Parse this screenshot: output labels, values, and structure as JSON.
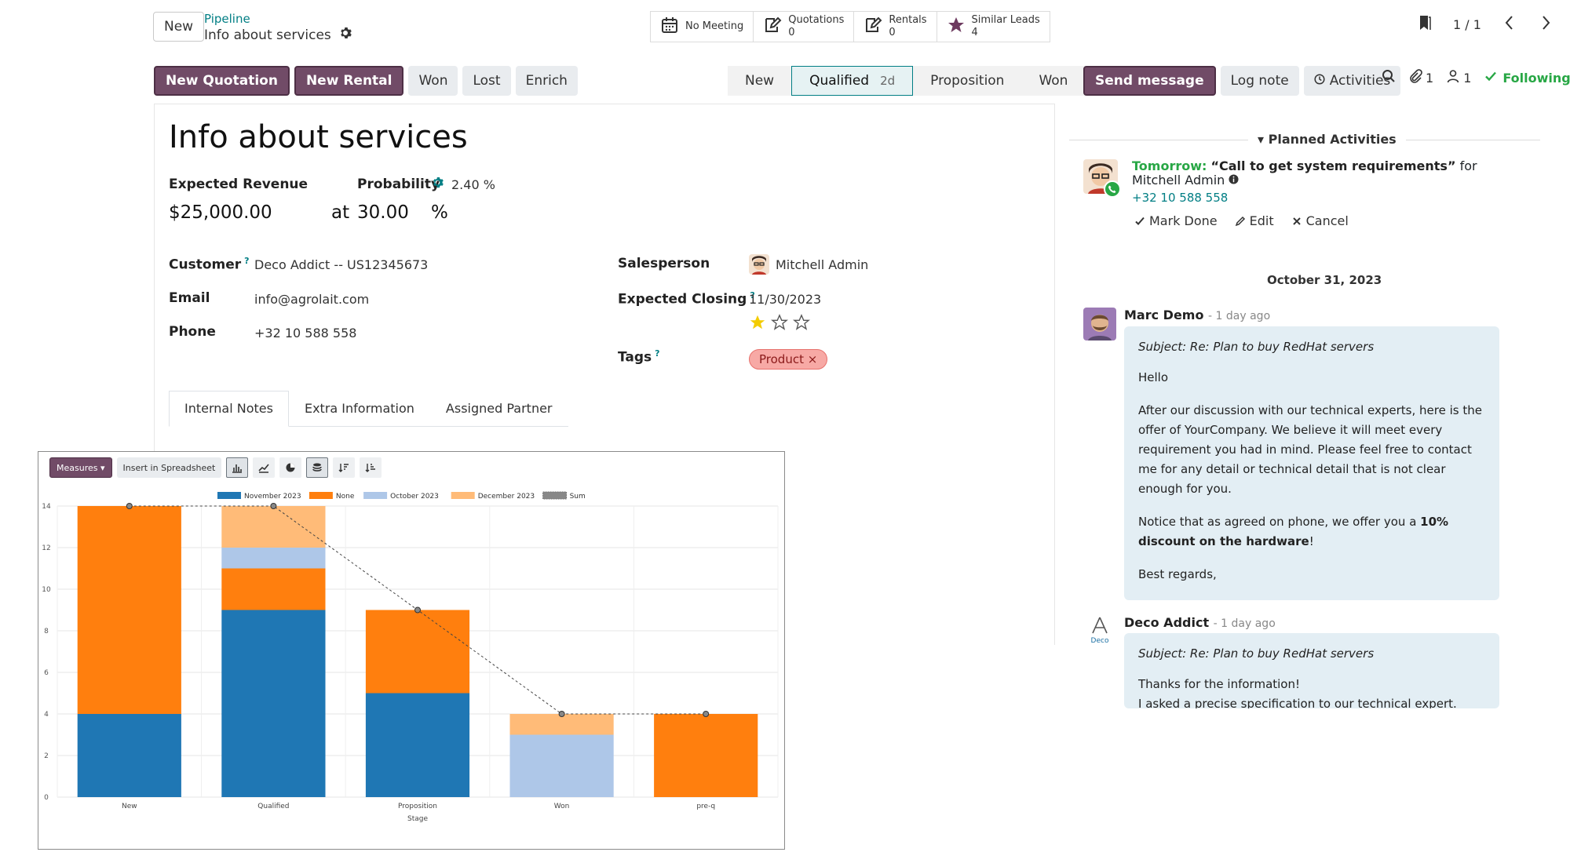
{
  "control_panel": {
    "new_button": "New",
    "breadcrumb_parent": "Pipeline",
    "breadcrumb_current": "Info about services",
    "smart_buttons": [
      {
        "icon": "calendar-icon",
        "label": "No Meeting",
        "count": ""
      },
      {
        "icon": "edit-document-icon",
        "label": "Quotations",
        "count": "0"
      },
      {
        "icon": "edit-document-icon",
        "label": "Rentals",
        "count": "0"
      },
      {
        "icon": "star-icon",
        "label": "Similar Leads",
        "count": "4"
      }
    ],
    "pager": "1 / 1"
  },
  "status_bar": {
    "actions": [
      "New Quotation",
      "New Rental",
      "Won",
      "Lost",
      "Enrich"
    ],
    "stages": [
      "New",
      "Qualified",
      "Proposition",
      "Won"
    ],
    "active_stage": "Qualified",
    "active_stage_days": "2d"
  },
  "form": {
    "title": "Info about services",
    "expected_revenue_label": "Expected Revenue",
    "expected_revenue": "$25,000.00",
    "probability_label": "Probability",
    "probability_auto": "2.40 %",
    "at_text": "at",
    "probability": "30.00",
    "percent": "%",
    "customer_label": "Customer",
    "customer": "Deco Addict -- US12345673",
    "email_label": "Email",
    "email": "info@agrolait.com",
    "phone_label": "Phone",
    "phone": "+32 10 588 558",
    "salesperson_label": "Salesperson",
    "salesperson": "Mitchell Admin",
    "expected_closing_label": "Expected Closing",
    "expected_closing": "11/30/2023",
    "priority_stars": 1,
    "priority_max": 3,
    "tags_label": "Tags",
    "tag": "Product",
    "tabs": [
      "Internal Notes",
      "Extra Information",
      "Assigned Partner"
    ],
    "help_mark": "?"
  },
  "chatter": {
    "send_message": "Send message",
    "log_note": "Log note",
    "activities": "Activities",
    "attachments_count": "1",
    "followers_count": "1",
    "following": "Following",
    "planned_activities": "Planned Activities",
    "activity": {
      "when": "Tomorrow:",
      "summary": "“Call to get system requirements”",
      "for_text": "for Mitchell Admin",
      "phone": "+32 10 588 558",
      "mark_done": "Mark Done",
      "edit": "Edit",
      "cancel": "Cancel"
    },
    "date_separator": "October 31, 2023",
    "messages": [
      {
        "author": "Marc Demo",
        "time": "- 1 day ago",
        "subject": "Subject: Re: Plan to buy RedHat servers",
        "body": [
          "Hello",
          "After our discussion with our technical experts, here is the offer of YourCompany. We believe it will meet every requirement you had in mind. Please feel free to contact me for any detail or technical detail that is not clear enough for you.",
          "Best regards,"
        ],
        "notice_prefix": "Notice that as agreed on phone, we offer you a ",
        "notice_bold": "10% discount on the hardware",
        "notice_suffix": "!"
      },
      {
        "author": "Deco Addict",
        "time": "- 1 day ago",
        "avatar_text": "Deco",
        "subject": "Subject: Re: Plan to buy RedHat servers",
        "body": [
          "Thanks for the information!",
          "I asked a precise specification to our technical expert."
        ]
      }
    ]
  },
  "chart_toolbar": {
    "measures": "Measures",
    "insert": "Insert in Spreadsheet"
  },
  "chart_data": {
    "type": "bar",
    "stacked": true,
    "xlabel": "Stage",
    "ylabel": "",
    "ylim": [
      0,
      14
    ],
    "yticks": [
      0,
      2,
      4,
      6,
      8,
      10,
      12,
      14
    ],
    "categories": [
      "New",
      "Qualified",
      "Proposition",
      "Won",
      "pre-q"
    ],
    "legend_position": "top",
    "grid": true,
    "series": [
      {
        "name": "November 2023",
        "color": "#1f77b4",
        "values": [
          4,
          9,
          5,
          0,
          0
        ]
      },
      {
        "name": "None",
        "color": "#ff7f0e",
        "values": [
          10,
          2,
          4,
          0,
          4
        ]
      },
      {
        "name": "October 2023",
        "color": "#aec7e8",
        "values": [
          0,
          1,
          0,
          3,
          0
        ]
      },
      {
        "name": "December 2023",
        "color": "#ffbb78",
        "values": [
          0,
          2,
          0,
          1,
          0
        ]
      }
    ],
    "sum_series": {
      "name": "Sum",
      "values": [
        14,
        14,
        9,
        4,
        4
      ]
    }
  }
}
